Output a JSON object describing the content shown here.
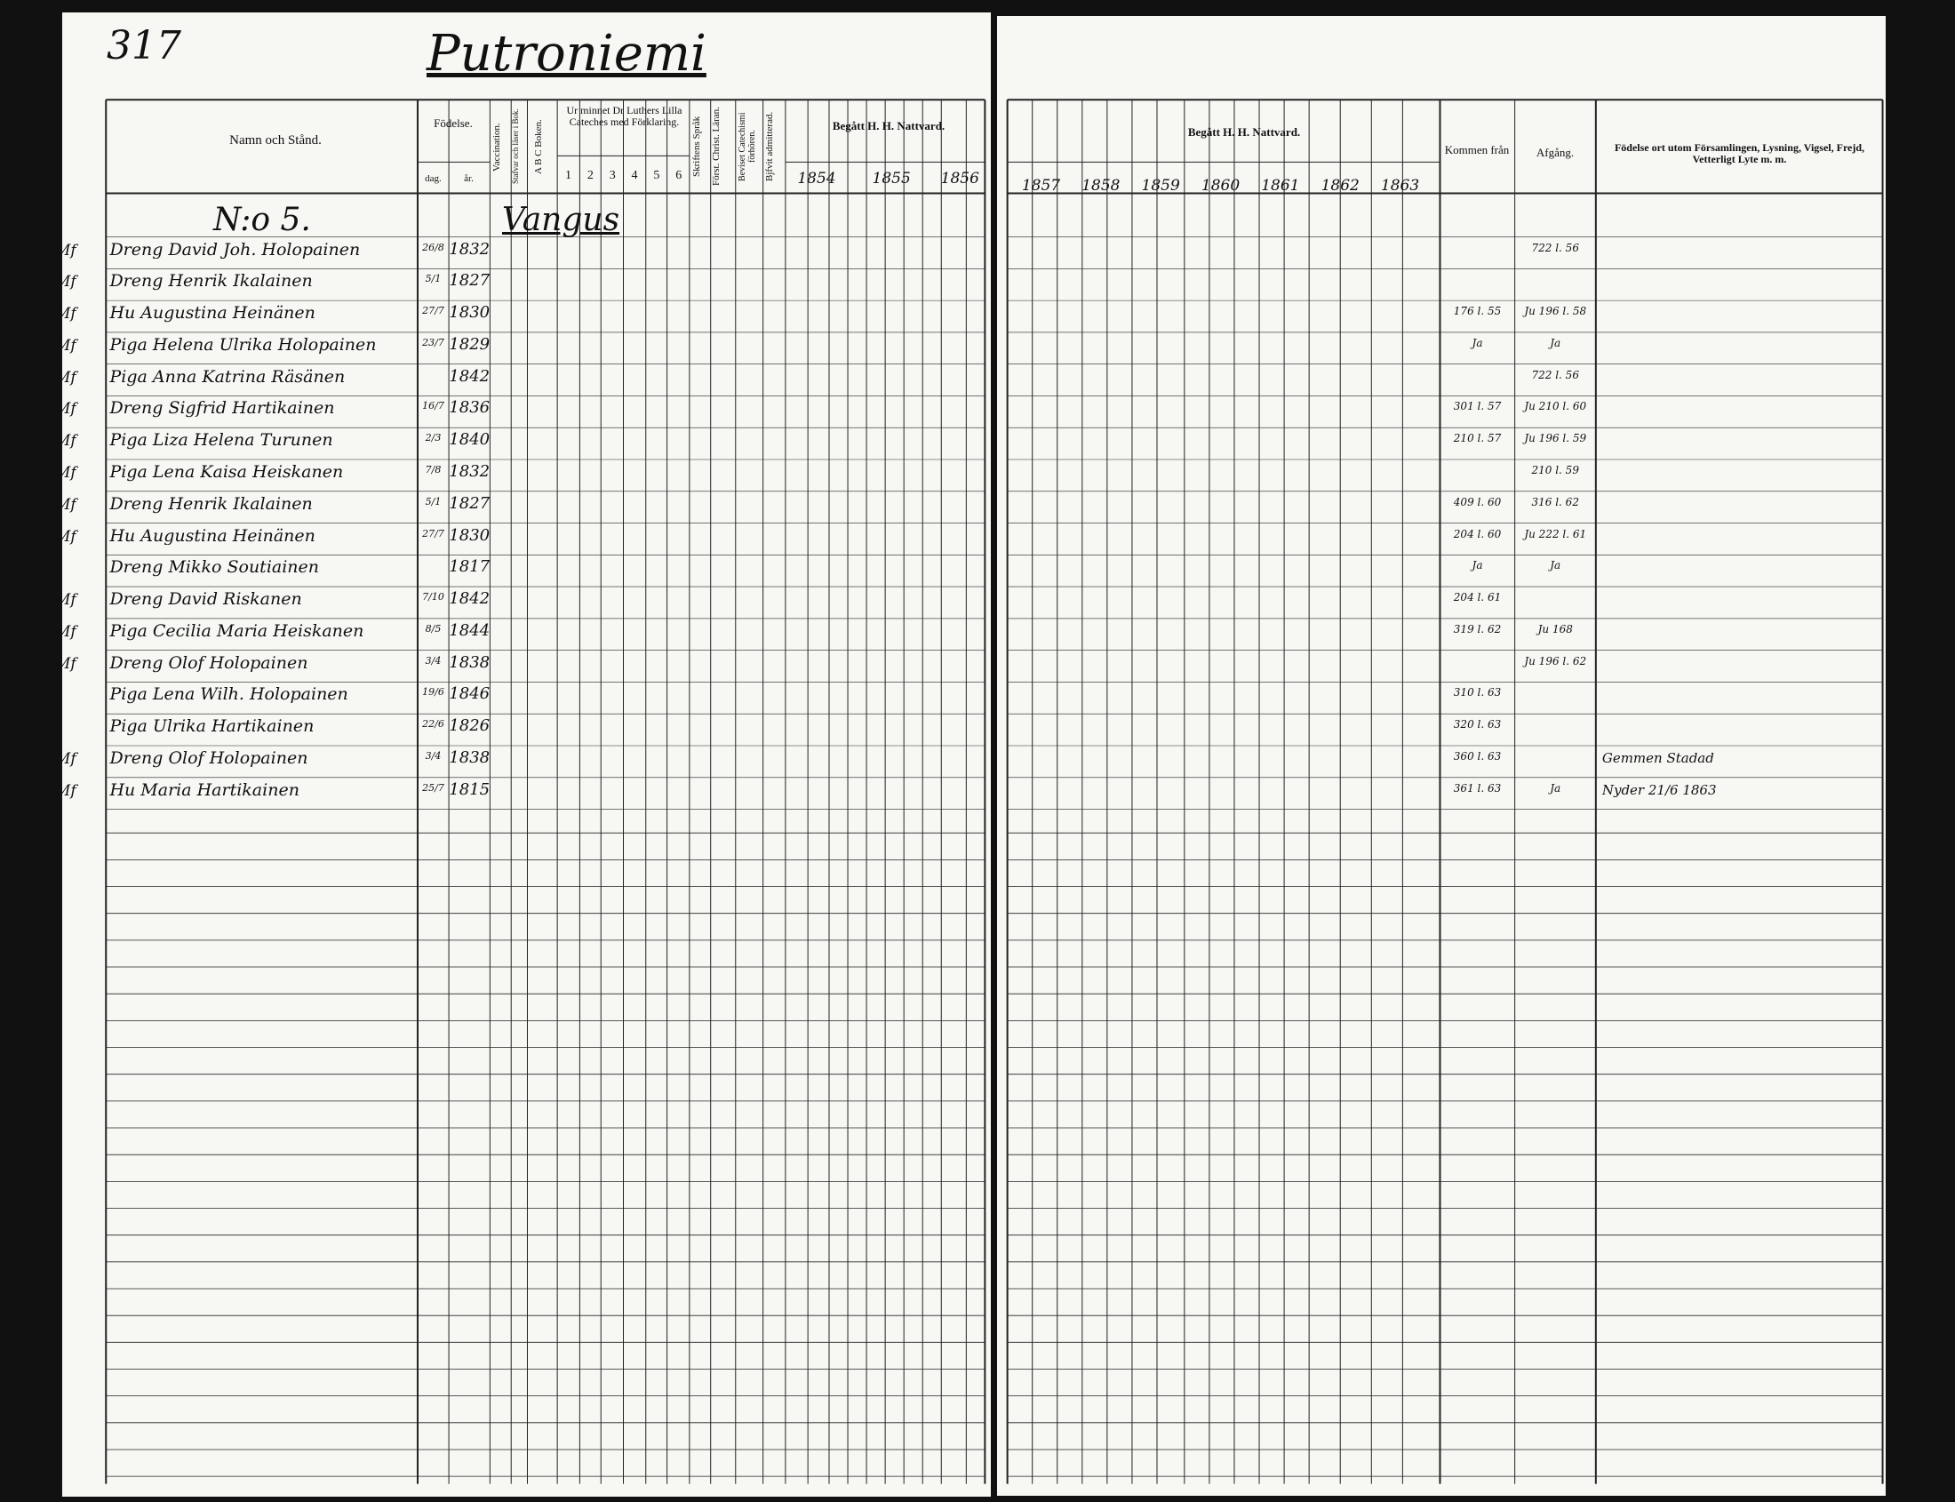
{
  "page_number": "317",
  "title": "Putroniemi",
  "left_header": {
    "name": "Namn och Stånd.",
    "birth": "Födelse.",
    "day": "dag.",
    "year": "år.",
    "vaccination": "Vaccination.",
    "reading": "Stafvar och läser i Bok.",
    "abc": "A B C Boken.",
    "catechism": "Ur minnet Dr Luthers Lilla Cateches med Förklaring.",
    "parts": [
      "1",
      "2",
      "3",
      "4",
      "5",
      "6"
    ],
    "scripture": "Skriftens Språk",
    "christian": "Först. Christ. Läran.",
    "exams": "Beviset Catechismi förhören.",
    "admitted": "Bjfvit admitterad.",
    "communion": "Begått H. H. Nattvard.",
    "years": [
      "1854",
      "1855",
      "1856"
    ]
  },
  "right_header": {
    "communion": "Begått H. H. Nattvard.",
    "years": [
      "1857",
      "1858",
      "1859",
      "1860",
      "1861",
      "1862",
      "1863"
    ],
    "arrived": "Kommen från",
    "departed": "Afgång.",
    "notes": "Födelse ort utom Församlingen, Lysning, Vigsel, Frejd, Vetterligt Lyte m. m."
  },
  "section": {
    "number": "N:o 5.",
    "place": "Vangus"
  },
  "rows": [
    {
      "margin": "Mf",
      "name": "Dreng David Joh. Holopainen",
      "day": "26/8",
      "year": "1832",
      "departed": "722 l. 56"
    },
    {
      "margin": "Mf",
      "name": "Dreng Henrik Ikalainen",
      "day": "5/1",
      "year": "1827"
    },
    {
      "margin": "Mf",
      "name": "Hu Augustina Heinänen",
      "day": "27/7",
      "year": "1830",
      "arrived": "176 l. 55",
      "departed": "Ju 196 l. 58"
    },
    {
      "margin": "Mf",
      "name": "Piga Helena Ulrika Holopainen",
      "day": "23/7",
      "year": "1829",
      "arrived": "Ja",
      "departed": "Ja"
    },
    {
      "margin": "Mf",
      "name": "Piga Anna Katrina Räsänen",
      "year": "1842",
      "departed": "722 l. 56"
    },
    {
      "margin": "Mf",
      "name": "Dreng Sigfrid Hartikainen",
      "day": "16/7",
      "year": "1836",
      "arrived": "301 l. 57",
      "departed": "Ju 210 l. 60"
    },
    {
      "margin": "Mf",
      "name": "Piga Liza Helena Turunen",
      "day": "2/3",
      "year": "1840",
      "arrived": "210 l. 57",
      "departed": "Ju 196 l. 59"
    },
    {
      "margin": "Mf",
      "name": "Piga Lena Kaisa Heiskanen",
      "day": "7/8",
      "year": "1832",
      "departed": "210 l. 59"
    },
    {
      "margin": "Mf",
      "name": "Dreng Henrik Ikalainen",
      "day": "5/1",
      "year": "1827",
      "arrived": "409 l. 60",
      "departed": "316 l. 62"
    },
    {
      "margin": "Mf",
      "name": "Hu Augustina Heinänen",
      "day": "27/7",
      "year": "1830",
      "arrived": "204 l. 60",
      "departed": "Ju 222 l. 61"
    },
    {
      "name": "Dreng Mikko Soutiainen",
      "year": "1817",
      "arrived": "Ja",
      "departed": "Ja"
    },
    {
      "margin": "Mf",
      "name": "Dreng David Riskanen",
      "day": "7/10",
      "year": "1842",
      "arrived": "204 l. 61"
    },
    {
      "margin": "Mf",
      "name": "Piga Cecilia Maria Heiskanen",
      "day": "8/5",
      "year": "1844",
      "arrived": "319 l. 62",
      "departed": "Ju 168"
    },
    {
      "margin": "Mf",
      "name": "Dreng Olof Holopainen",
      "day": "3/4",
      "year": "1838",
      "departed": "Ju 196 l. 62"
    },
    {
      "name": "Piga Lena Wilh. Holopainen",
      "day": "19/6",
      "year": "1846",
      "arrived": "310 l. 63"
    },
    {
      "name": "Piga Ulrika Hartikainen",
      "day": "22/6",
      "year": "1826",
      "arrived": "320 l. 63"
    },
    {
      "margin": "Mf",
      "name": "Dreng Olof Holopainen",
      "day": "3/4",
      "year": "1838",
      "arrived": "360 l. 63",
      "notes": "Gemmen Stadad"
    },
    {
      "margin": "Mf",
      "name": "Hu Maria Hartikainen",
      "day": "25/7",
      "year": "1815",
      "arrived": "361 l. 63",
      "departed": "Ja",
      "notes": "Nyder 21/6 1863"
    }
  ]
}
